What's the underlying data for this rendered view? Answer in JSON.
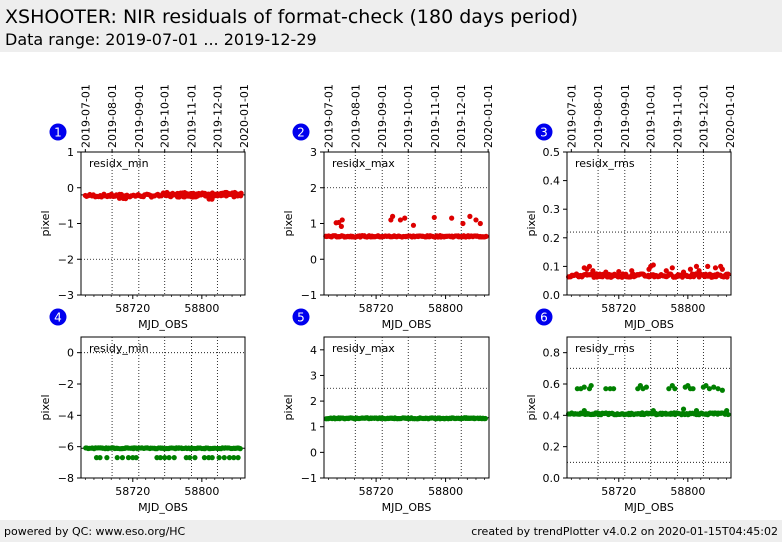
{
  "header": {
    "title": "XSHOOTER: NIR residuals of format-check (180 days period)",
    "subtitle": "Data range: 2019-07-01 ... 2019-12-29"
  },
  "footer": {
    "left": "powered by QC: www.eso.org/HC",
    "right": "created by trendPlotter v4.0.2 on 2020-01-15T04:45:02"
  },
  "colors": {
    "residx": "#dd0000",
    "residy": "#008000",
    "badge": "#0000ee"
  },
  "chart_data": [
    {
      "type": "scatter",
      "badge": "1",
      "label": "residx_min",
      "color": "#dd0000",
      "xlabel": "MJD_OBS",
      "ylabel": "pixel",
      "xlim": [
        58660,
        58850
      ],
      "ylim": [
        -3,
        1
      ],
      "yticks": [
        "1",
        "0",
        "−1",
        "−2",
        "−3"
      ],
      "ytick_values": [
        1,
        0,
        -1,
        -2,
        -3
      ],
      "xticks": [
        "58720",
        "58800"
      ],
      "xtick_values": [
        58720,
        58800
      ],
      "top_ticks": [
        "2019-07-01",
        "2019-08-01",
        "2019-09-01",
        "2019-10-01",
        "2019-11-01",
        "2019-12-01",
        "2020-01-01"
      ],
      "hlines": [
        -2
      ],
      "ref_line": -0.2,
      "clusters": [
        {
          "x0": 58665,
          "x1": 58845,
          "y": -0.22,
          "n": 95,
          "spread": 0.04
        },
        {
          "x0": 58755,
          "x1": 58845,
          "y": -0.16,
          "n": 40,
          "spread": 0.03
        },
        {
          "x0": 58808,
          "x1": 58812,
          "y": -0.32,
          "n": 2,
          "spread": 0.01
        },
        {
          "x0": 58705,
          "x1": 58712,
          "y": -0.3,
          "n": 3,
          "spread": 0.01
        }
      ]
    },
    {
      "type": "scatter",
      "badge": "2",
      "label": "residx_max",
      "color": "#dd0000",
      "xlabel": "MJD_OBS",
      "ylabel": "pixel",
      "xlim": [
        58660,
        58850
      ],
      "ylim": [
        -1,
        3
      ],
      "yticks": [
        "3",
        "2",
        "1",
        "0",
        "−1"
      ],
      "ytick_values": [
        3,
        2,
        1,
        0,
        -1
      ],
      "xticks": [
        "58720",
        "58800"
      ],
      "xtick_values": [
        58720,
        58800
      ],
      "top_ticks": [
        "2019-07-01",
        "2019-08-01",
        "2019-09-01",
        "2019-10-01",
        "2019-11-01",
        "2019-12-01",
        "2020-01-01"
      ],
      "hlines": [
        2
      ],
      "ref_line": 0.63,
      "clusters": [
        {
          "x0": 58662,
          "x1": 58847,
          "y": 0.64,
          "n": 130,
          "spread": 0.02
        }
      ],
      "points": [
        [
          58674,
          1.02
        ],
        [
          58677,
          1.03
        ],
        [
          58680,
          0.92
        ],
        [
          58681,
          1.1
        ],
        [
          58737,
          1.1
        ],
        [
          58739,
          1.2
        ],
        [
          58748,
          1.1
        ],
        [
          58753,
          1.15
        ],
        [
          58763,
          0.95
        ],
        [
          58787,
          1.17
        ],
        [
          58807,
          1.15
        ],
        [
          58820,
          1.0
        ],
        [
          58828,
          1.2
        ],
        [
          58835,
          1.1
        ],
        [
          58840,
          1.0
        ]
      ]
    },
    {
      "type": "scatter",
      "badge": "3",
      "label": "residx_rms",
      "color": "#dd0000",
      "xlabel": "MJD_OBS",
      "ylabel": "pixel",
      "xlim": [
        58660,
        58850
      ],
      "ylim": [
        0,
        0.5
      ],
      "yticks": [
        "0.5",
        "0.4",
        "0.3",
        "0.2",
        "0.1",
        "0.0"
      ],
      "ytick_values": [
        0.5,
        0.4,
        0.3,
        0.2,
        0.1,
        0.0
      ],
      "xticks": [
        "58720",
        "58800"
      ],
      "xtick_values": [
        58720,
        58800
      ],
      "top_ticks": [
        "2019-07-01",
        "2019-08-01",
        "2019-09-01",
        "2019-10-01",
        "2019-11-01",
        "2019-12-01",
        "2020-01-01"
      ],
      "hlines": [
        0.22
      ],
      "ref_line": 0.068,
      "clusters": [
        {
          "x0": 58662,
          "x1": 58847,
          "y": 0.068,
          "n": 130,
          "spread": 0.006
        }
      ],
      "points": [
        [
          58680,
          0.095
        ],
        [
          58683,
          0.09
        ],
        [
          58686,
          0.1
        ],
        [
          58690,
          0.085
        ],
        [
          58705,
          0.08
        ],
        [
          58720,
          0.082
        ],
        [
          58735,
          0.085
        ],
        [
          58755,
          0.09
        ],
        [
          58757,
          0.1
        ],
        [
          58760,
          0.105
        ],
        [
          58775,
          0.085
        ],
        [
          58782,
          0.095
        ],
        [
          58795,
          0.08
        ],
        [
          58803,
          0.09
        ],
        [
          58810,
          0.1
        ],
        [
          58813,
          0.085
        ],
        [
          58823,
          0.1
        ],
        [
          58832,
          0.095
        ],
        [
          58838,
          0.1
        ],
        [
          58840,
          0.09
        ]
      ]
    },
    {
      "type": "scatter",
      "badge": "4",
      "label": "residy_min",
      "color": "#008000",
      "xlabel": "MJD_OBS",
      "ylabel": "pixel",
      "xlim": [
        58660,
        58850
      ],
      "ylim": [
        -8,
        1
      ],
      "yticks": [
        "0",
        "−2",
        "−4",
        "−6",
        "−8"
      ],
      "ytick_values": [
        0,
        -2,
        -4,
        -6,
        -8
      ],
      "xticks": [
        "58720",
        "58800"
      ],
      "xtick_values": [
        58720,
        58800
      ],
      "top_ticks": [],
      "hlines": [
        0
      ],
      "ref_line": -6.1,
      "clusters": [
        {
          "x0": 58665,
          "x1": 58845,
          "y": -6.1,
          "n": 105,
          "spread": 0.03
        }
      ],
      "points": [
        [
          58678,
          -6.7
        ],
        [
          58682,
          -6.7
        ],
        [
          58690,
          -6.7
        ],
        [
          58702,
          -6.7
        ],
        [
          58708,
          -6.7
        ],
        [
          58715,
          -6.7
        ],
        [
          58720,
          -6.7
        ],
        [
          58724,
          -6.7
        ],
        [
          58748,
          -6.7
        ],
        [
          58752,
          -6.7
        ],
        [
          58757,
          -6.7
        ],
        [
          58762,
          -6.7
        ],
        [
          58768,
          -6.7
        ],
        [
          58782,
          -6.7
        ],
        [
          58786,
          -6.7
        ],
        [
          58792,
          -6.7
        ],
        [
          58803,
          -6.7
        ],
        [
          58808,
          -6.7
        ],
        [
          58812,
          -6.7
        ],
        [
          58820,
          -6.7
        ],
        [
          58826,
          -6.7
        ],
        [
          58832,
          -6.7
        ],
        [
          58837,
          -6.7
        ],
        [
          58842,
          -6.7
        ]
      ]
    },
    {
      "type": "scatter",
      "badge": "5",
      "label": "residy_max",
      "color": "#008000",
      "xlabel": "MJD_OBS",
      "ylabel": "pixel",
      "xlim": [
        58660,
        58850
      ],
      "ylim": [
        -1,
        4.5
      ],
      "yticks": [
        "4",
        "3",
        "2",
        "1",
        "0",
        "−1"
      ],
      "ytick_values": [
        4,
        3,
        2,
        1,
        0,
        -1
      ],
      "xticks": [
        "58720",
        "58800"
      ],
      "xtick_values": [
        58720,
        58800
      ],
      "top_ticks": [],
      "hlines": [
        2.5
      ],
      "ref_line": 1.35,
      "clusters": [
        {
          "x0": 58663,
          "x1": 58846,
          "y": 1.33,
          "n": 135,
          "spread": 0.02
        }
      ]
    },
    {
      "type": "scatter",
      "badge": "6",
      "label": "residy_rms",
      "color": "#008000",
      "xlabel": "MJD_OBS",
      "ylabel": "pixel",
      "xlim": [
        58660,
        58850
      ],
      "ylim": [
        0,
        0.9
      ],
      "yticks": [
        "0.8",
        "0.6",
        "0.4",
        "0.2",
        "0.0"
      ],
      "ytick_values": [
        0.8,
        0.6,
        0.4,
        0.2,
        0.0
      ],
      "xticks": [
        "58720",
        "58800"
      ],
      "xtick_values": [
        58720,
        58800
      ],
      "top_ticks": [],
      "hlines": [
        0.7,
        0.1
      ],
      "ref_line": 0.41,
      "clusters": [
        {
          "x0": 58662,
          "x1": 58847,
          "y": 0.41,
          "n": 130,
          "spread": 0.006
        }
      ],
      "points": [
        [
          58672,
          0.57
        ],
        [
          58676,
          0.57
        ],
        [
          58680,
          0.58
        ],
        [
          58686,
          0.57
        ],
        [
          58688,
          0.59
        ],
        [
          58705,
          0.57
        ],
        [
          58710,
          0.57
        ],
        [
          58714,
          0.57
        ],
        [
          58742,
          0.57
        ],
        [
          58745,
          0.59
        ],
        [
          58748,
          0.57
        ],
        [
          58752,
          0.58
        ],
        [
          58778,
          0.57
        ],
        [
          58782,
          0.59
        ],
        [
          58785,
          0.57
        ],
        [
          58797,
          0.58
        ],
        [
          58800,
          0.59
        ],
        [
          58803,
          0.57
        ],
        [
          58806,
          0.57
        ],
        [
          58818,
          0.58
        ],
        [
          58821,
          0.59
        ],
        [
          58825,
          0.57
        ],
        [
          58830,
          0.58
        ],
        [
          58835,
          0.57
        ],
        [
          58840,
          0.56
        ],
        [
          58680,
          0.43
        ],
        [
          58760,
          0.43
        ],
        [
          58795,
          0.44
        ],
        [
          58810,
          0.43
        ],
        [
          58845,
          0.43
        ]
      ]
    }
  ]
}
